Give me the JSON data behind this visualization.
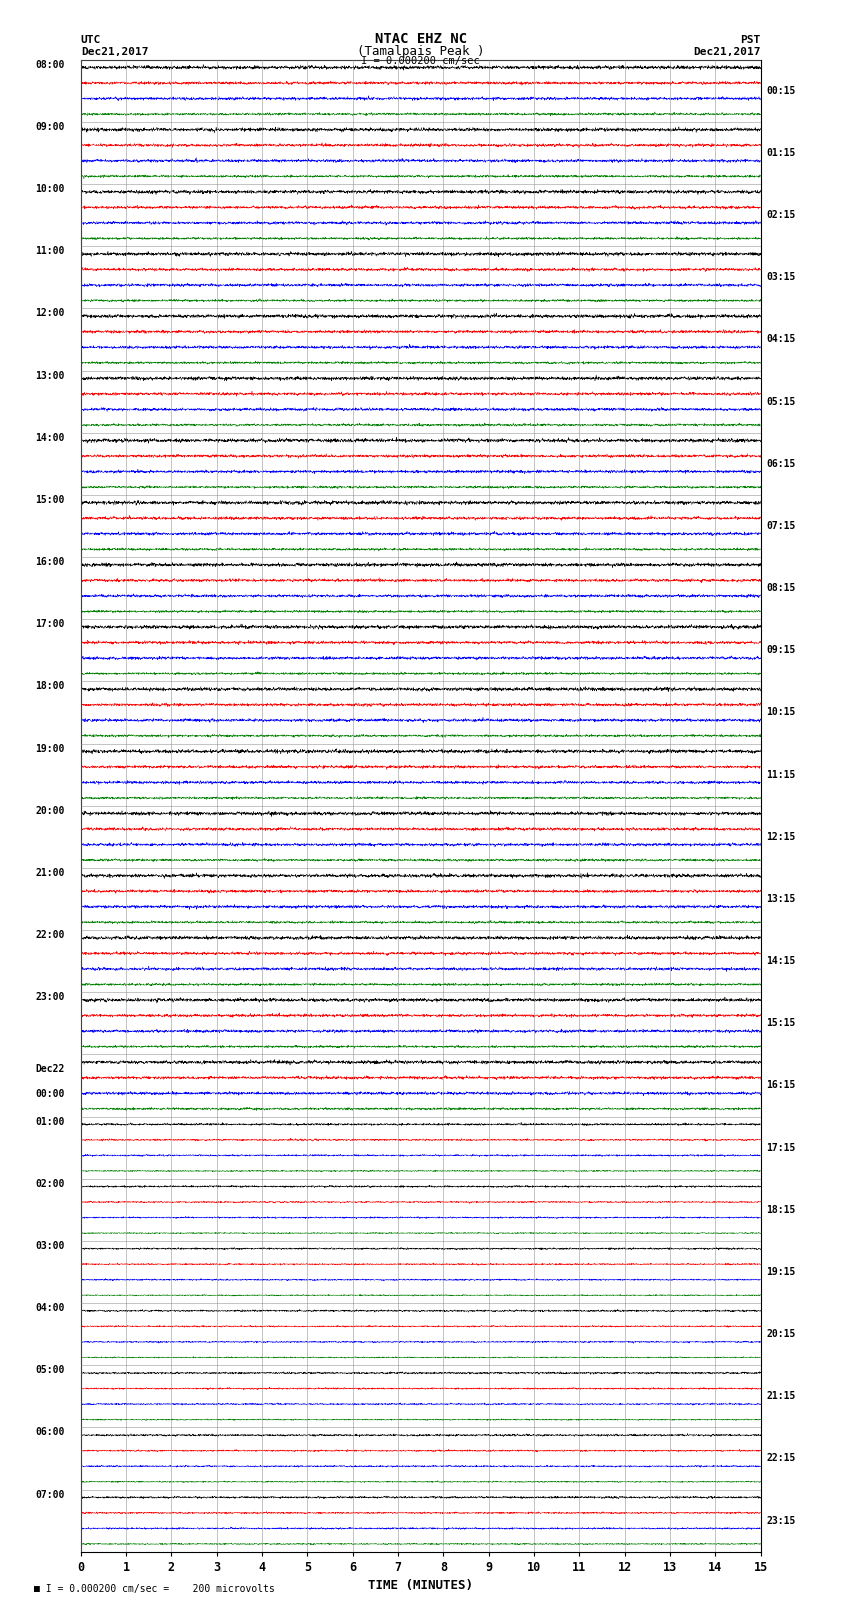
{
  "title_line1": "NTAC EHZ NC",
  "title_line2": "(Tamalpais Peak )",
  "title_line3": "I = 0.000200 cm/sec",
  "label_utc": "UTC",
  "label_date_left": "Dec21,2017",
  "label_pst": "PST",
  "label_date_right": "Dec21,2017",
  "xlabel": "TIME (MINUTES)",
  "footnote": "■ I = 0.000200 cm/sec =    200 microvolts",
  "left_times": [
    "08:00",
    "09:00",
    "10:00",
    "11:00",
    "12:00",
    "13:00",
    "14:00",
    "15:00",
    "16:00",
    "17:00",
    "18:00",
    "19:00",
    "20:00",
    "21:00",
    "22:00",
    "23:00",
    "Dec22\n00:00",
    "01:00",
    "02:00",
    "03:00",
    "04:00",
    "05:00",
    "06:00",
    "07:00"
  ],
  "right_times": [
    "00:15",
    "01:15",
    "02:15",
    "03:15",
    "04:15",
    "05:15",
    "06:15",
    "07:15",
    "08:15",
    "09:15",
    "10:15",
    "11:15",
    "12:15",
    "13:15",
    "14:15",
    "15:15",
    "16:15",
    "17:15",
    "18:15",
    "19:15",
    "20:15",
    "21:15",
    "22:15",
    "23:15"
  ],
  "num_rows": 24,
  "traces_per_row": 4,
  "colors": [
    "black",
    "red",
    "blue",
    "green"
  ],
  "bg_color": "white",
  "grid_color": "#888888",
  "num_minutes": 15,
  "fig_width": 8.5,
  "fig_height": 16.13,
  "noise_scale": [
    0.012,
    0.01,
    0.01,
    0.008
  ],
  "trace_amplitude_scale": 0.09
}
